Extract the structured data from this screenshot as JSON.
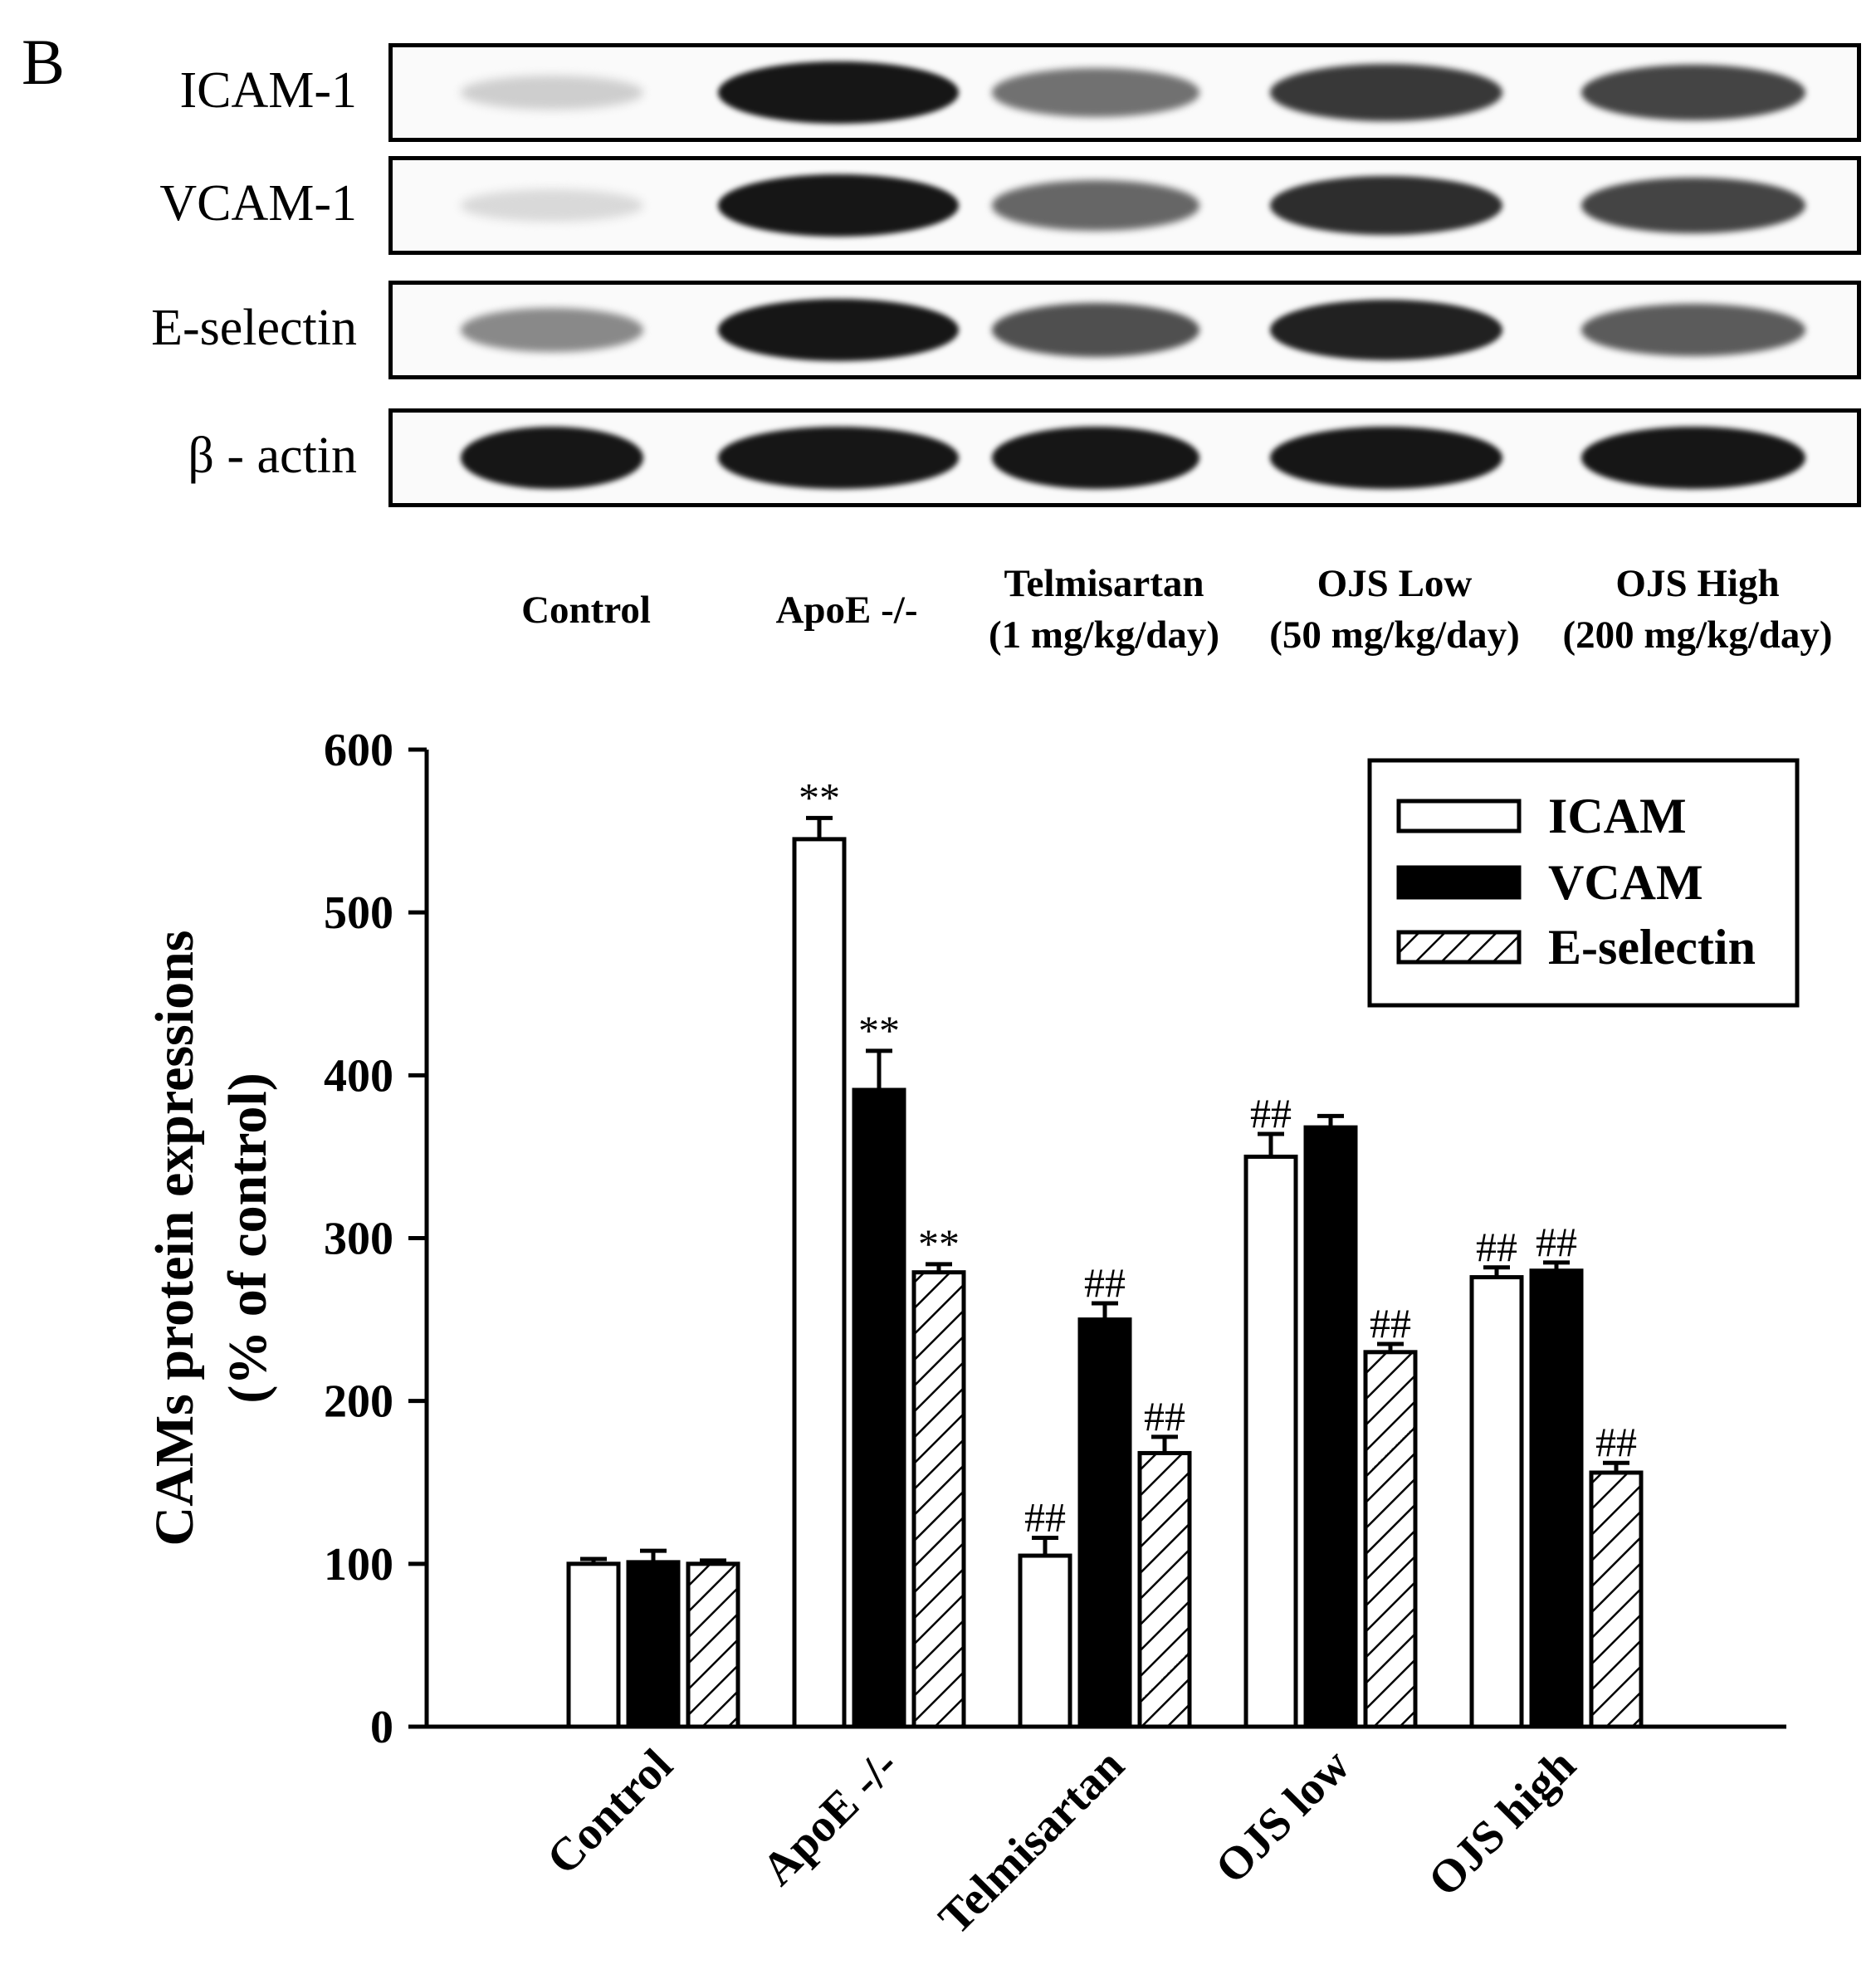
{
  "panel_letter": "B",
  "blot": {
    "rows": [
      {
        "label": "ICAM-1",
        "intensity": [
          0.15,
          0.95,
          0.55,
          0.8,
          0.75
        ]
      },
      {
        "label": "VCAM-1",
        "intensity": [
          0.1,
          0.95,
          0.6,
          0.85,
          0.75
        ]
      },
      {
        "label": "E-selectin",
        "intensity": [
          0.45,
          0.95,
          0.7,
          0.9,
          0.65
        ]
      },
      {
        "label": "β - actin",
        "intensity": [
          0.95,
          0.95,
          0.95,
          0.95,
          0.95
        ]
      }
    ],
    "lanes": [
      {
        "line1": "Control",
        "line2": ""
      },
      {
        "line1": "ApoE -/-",
        "line2": ""
      },
      {
        "line1": "Telmisartan",
        "line2": "(1 mg/kg/day)"
      },
      {
        "line1": "OJS Low",
        "line2": "(50 mg/kg/day)"
      },
      {
        "line1": "OJS High",
        "line2": "(200 mg/kg/day)"
      }
    ]
  },
  "chart_data": {
    "type": "bar",
    "ylabel_line1": "CAMs protein expressions",
    "ylabel_line2": "(% of control)",
    "xlabel": "",
    "ylim": [
      0,
      600
    ],
    "yticks": [
      0,
      100,
      200,
      300,
      400,
      500,
      600
    ],
    "categories": [
      "Control",
      "ApoE -/-",
      "Telmisartan",
      "OJS low",
      "OJS high"
    ],
    "series": [
      {
        "name": "ICAM",
        "fill": "white",
        "values": [
          100,
          545,
          105,
          350,
          276
        ],
        "errors": [
          3,
          13,
          11,
          14,
          6
        ],
        "annotations": [
          "",
          "**",
          "##",
          "##",
          "##"
        ]
      },
      {
        "name": "VCAM",
        "fill": "black",
        "values": [
          101,
          391,
          250,
          368,
          280
        ],
        "errors": [
          7,
          24,
          10,
          7,
          5
        ],
        "annotations": [
          "",
          "**",
          "##",
          "",
          "##"
        ]
      },
      {
        "name": "E-selectin",
        "fill": "hatch",
        "values": [
          100,
          279,
          168,
          230,
          156
        ],
        "errors": [
          2,
          5,
          10,
          5,
          6
        ],
        "annotations": [
          "",
          "**",
          "##",
          "##",
          "##"
        ]
      }
    ],
    "legend": {
      "position": "top-right",
      "entries": [
        "ICAM",
        "VCAM",
        "E-selectin"
      ]
    }
  }
}
